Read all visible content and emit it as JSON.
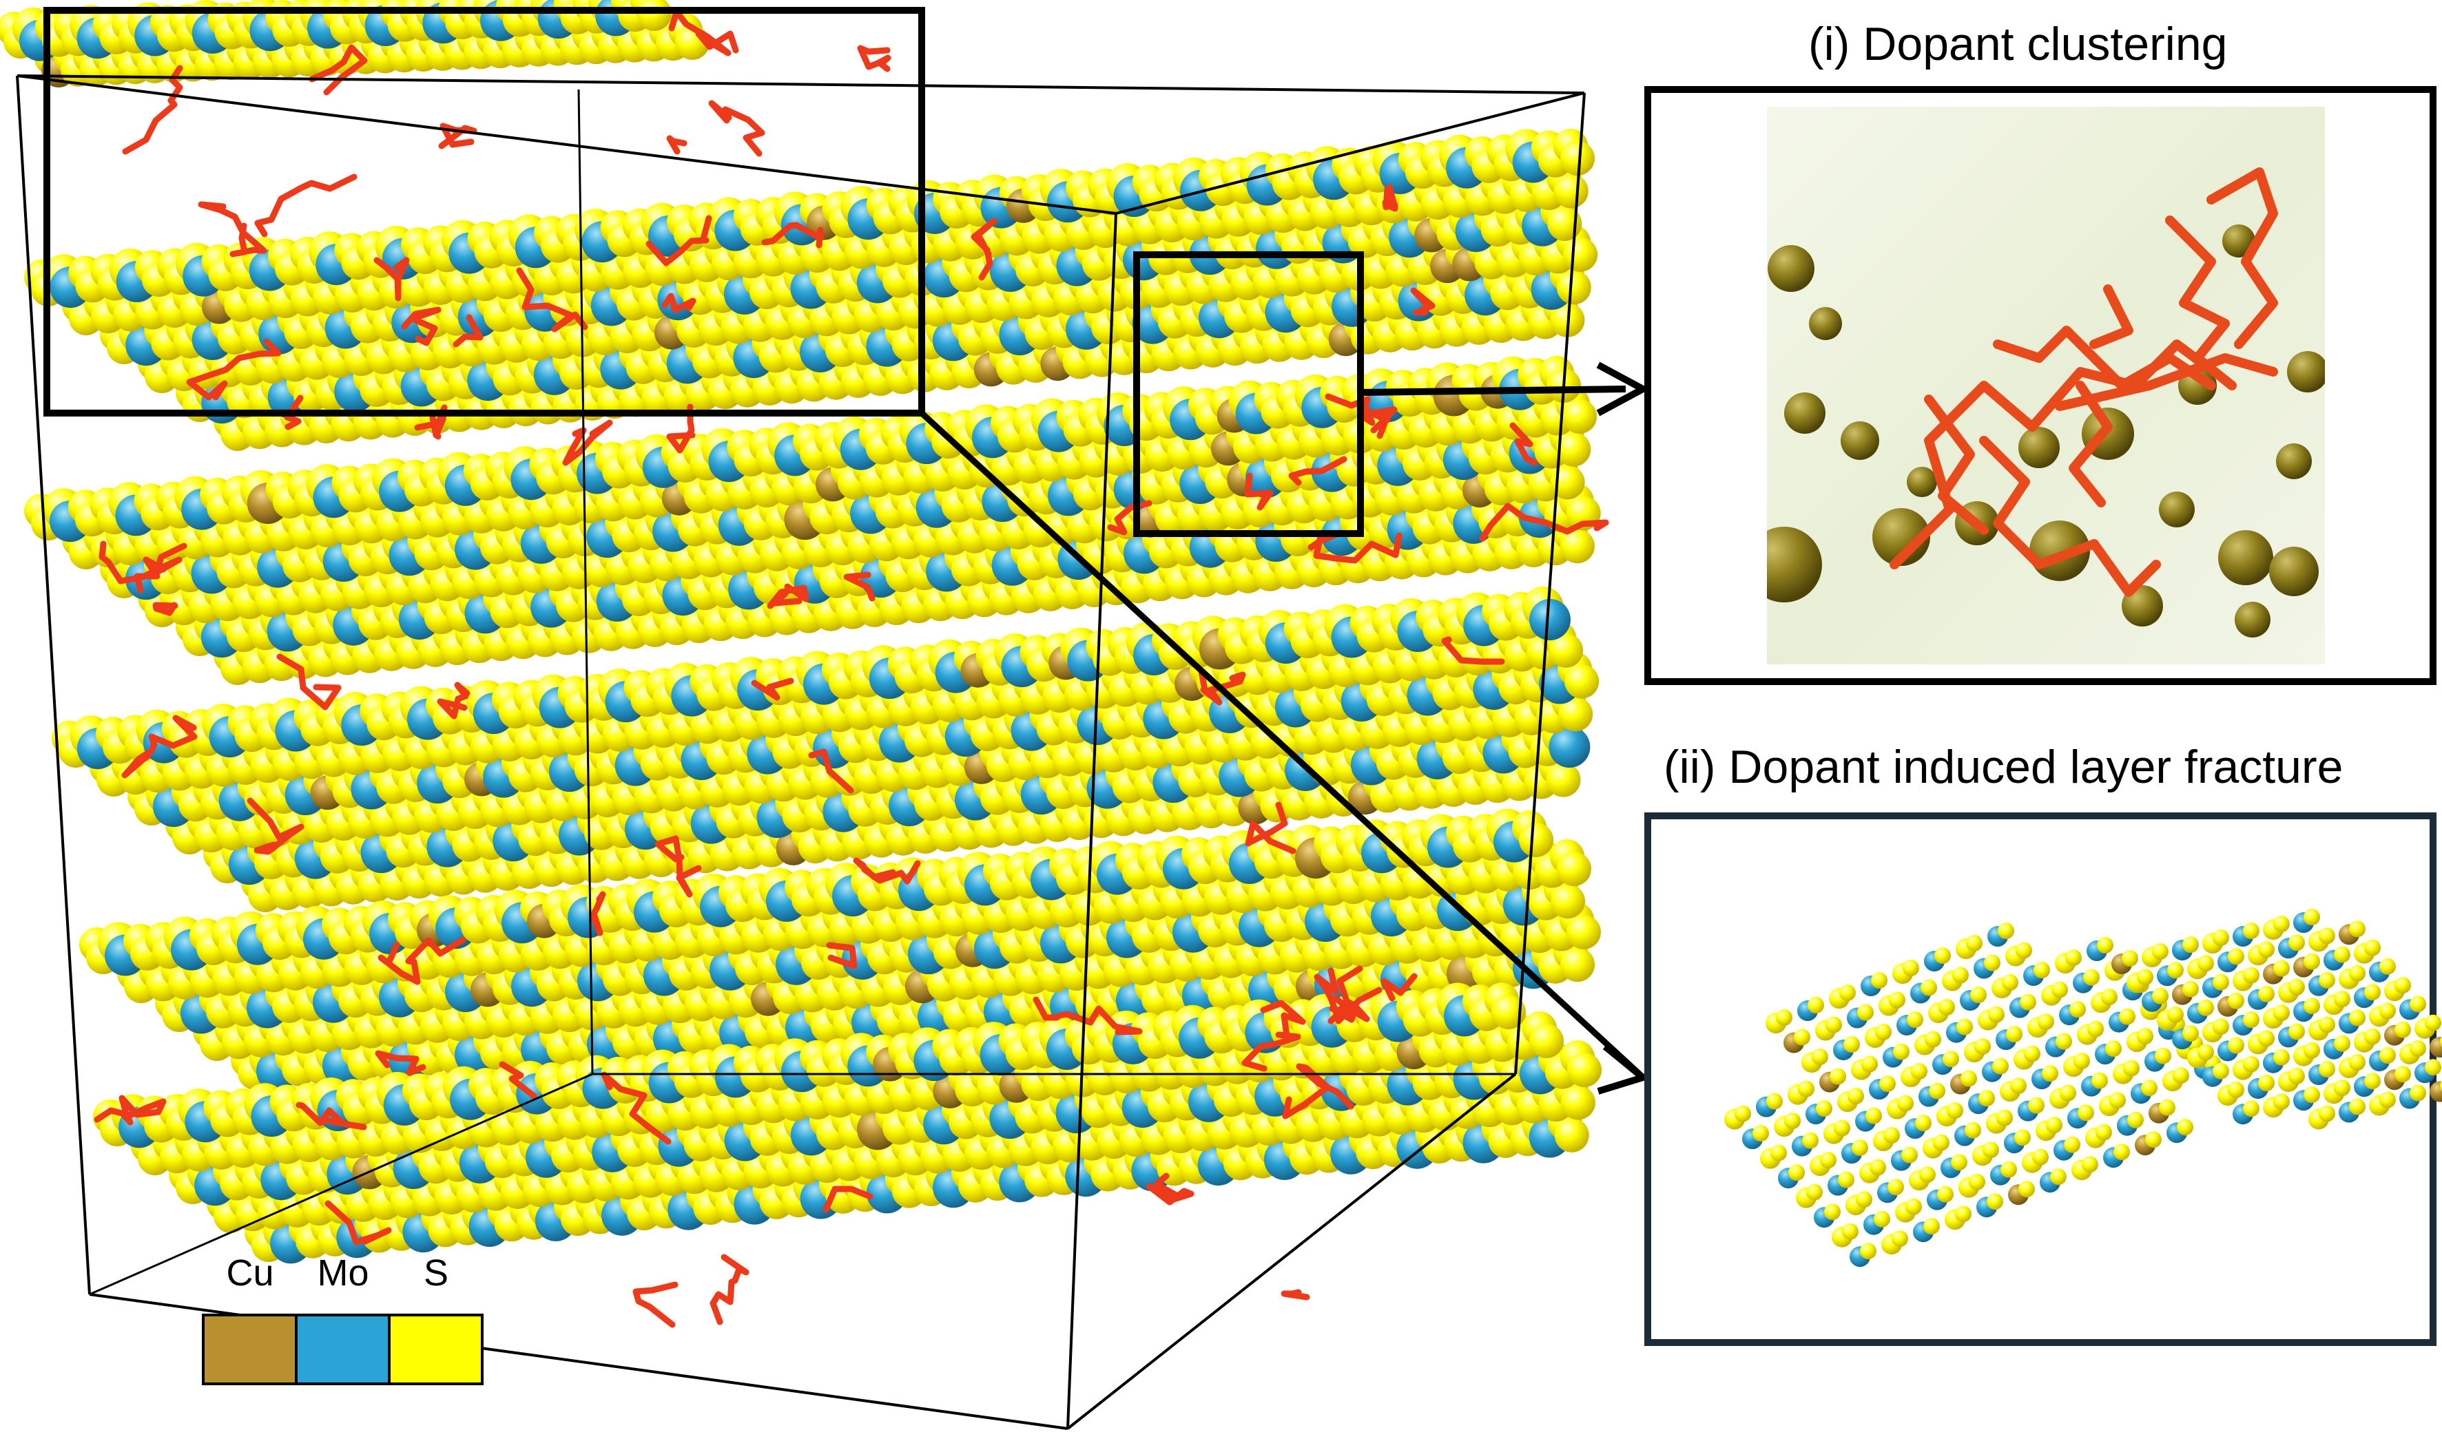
{
  "panel_i": {
    "title": "(i) Dopant clustering"
  },
  "panel_ii": {
    "title": "(ii) Dopant induced layer fracture"
  },
  "legend": {
    "items": [
      {
        "label": "Cu",
        "color": "#b8902e"
      },
      {
        "label": "Mo",
        "color": "#2ba3d6"
      },
      {
        "label": "S",
        "color": "#ffff00"
      }
    ]
  },
  "colors": {
    "sulfur": "#ffff00",
    "molybdenum": "#2ba3d6",
    "copper": "#b8902e",
    "dopant_bonds": "#ee3a1a",
    "frame": "#000000",
    "panel_ii_border": "#1b2b38"
  }
}
